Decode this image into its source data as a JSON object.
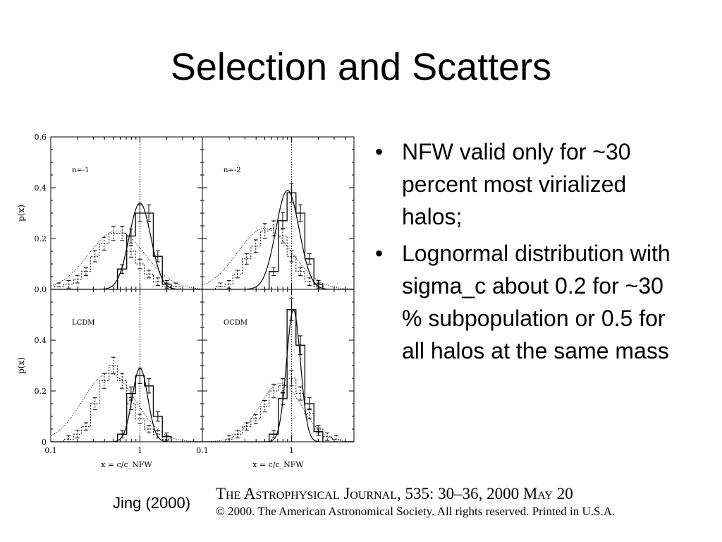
{
  "slide": {
    "title": "Selection and Scatters"
  },
  "bullets": [
    "NFW valid only for ~30 percent most virialized halos;",
    "Lognormal distribution with sigma_c about 0.2 for ~30 % subpopulation or 0.5 for all halos at the same mass"
  ],
  "bullet_glyph": "•",
  "citation": "Jing (2000)",
  "journal": {
    "line1": "The Astrophysical Journal, 535: 30–36, 2000 May 20",
    "line2": "© 2000. The American Astronomical Society. All rights reserved. Printed in U.S.A."
  },
  "chart_data": {
    "type": "line",
    "xscale": "log",
    "xlim": [
      0.1,
      5
    ],
    "ylim": [
      0,
      0.6
    ],
    "xlabel": "x = c/c_NFW",
    "ylabel": "p(x)",
    "yticks": [
      "0.6",
      "0.4",
      "0.2",
      "0.0"
    ],
    "yticks_bottom": [
      "0.4",
      "0.2",
      "0"
    ],
    "xticks": [
      "0.1",
      "1"
    ],
    "reference_line_x": 1,
    "series_style": {
      "solid": "selected halos (histogram + lognormal fit)",
      "dotted": "all halos (histogram + lognormal fit)"
    },
    "panels": [
      {
        "label": "n=-1",
        "solid_hist": {
          "edges": [
            0.45,
            0.56,
            0.71,
            0.89,
            1.12,
            1.41,
            1.78,
            2.24
          ],
          "values": [
            0.0,
            0.08,
            0.21,
            0.3,
            0.3,
            0.13,
            0.02
          ]
        },
        "dotted_hist": {
          "edges": [
            0.09,
            0.11,
            0.14,
            0.18,
            0.22,
            0.28,
            0.35,
            0.45,
            0.56,
            0.71,
            0.89,
            1.12,
            1.41,
            1.78,
            2.24,
            2.82,
            3.55
          ],
          "values": [
            0.0,
            0.01,
            0.02,
            0.04,
            0.07,
            0.13,
            0.18,
            0.22,
            0.22,
            0.15,
            0.1,
            0.06,
            0.03,
            0.01,
            0.01,
            0.0
          ]
        },
        "solid_fit": {
          "peak": 0.34,
          "center": 1.0,
          "sigma_ln": 0.28
        },
        "dotted_fit": {
          "peak": 0.23,
          "center": 0.55,
          "sigma_ln": 0.72
        }
      },
      {
        "label": "n=-2",
        "solid_hist": {
          "edges": [
            0.45,
            0.56,
            0.71,
            0.89,
            1.12,
            1.41,
            1.78,
            2.24
          ],
          "values": [
            0.0,
            0.07,
            0.27,
            0.38,
            0.3,
            0.12,
            0.02
          ]
        },
        "dotted_hist": {
          "edges": [
            0.14,
            0.18,
            0.22,
            0.28,
            0.35,
            0.45,
            0.56,
            0.71,
            0.89,
            1.12,
            1.41,
            1.78,
            2.24,
            2.82
          ],
          "values": [
            0.01,
            0.02,
            0.06,
            0.12,
            0.17,
            0.23,
            0.24,
            0.21,
            0.13,
            0.07,
            0.03,
            0.01,
            0.0
          ]
        },
        "solid_fit": {
          "peak": 0.39,
          "center": 0.9,
          "sigma_ln": 0.3
        },
        "dotted_fit": {
          "peak": 0.24,
          "center": 0.5,
          "sigma_ln": 0.7
        }
      },
      {
        "label": "LCDM",
        "solid_hist": {
          "edges": [
            0.56,
            0.71,
            0.89,
            1.12,
            1.41,
            1.78,
            2.24
          ],
          "values": [
            0.03,
            0.19,
            0.26,
            0.22,
            0.1,
            0.02
          ]
        },
        "dotted_hist": {
          "edges": [
            0.14,
            0.18,
            0.22,
            0.28,
            0.35,
            0.45,
            0.56,
            0.71,
            0.89,
            1.12,
            1.41,
            1.78,
            2.24
          ],
          "values": [
            0.01,
            0.03,
            0.06,
            0.15,
            0.24,
            0.3,
            0.24,
            0.15,
            0.09,
            0.05,
            0.03,
            0.01
          ]
        },
        "solid_fit": {
          "peak": 0.29,
          "center": 1.0,
          "sigma_ln": 0.2
        },
        "dotted_fit": {
          "peak": 0.27,
          "center": 0.45,
          "sigma_ln": 0.68
        }
      },
      {
        "label": "OCDM",
        "solid_hist": {
          "edges": [
            0.56,
            0.71,
            0.89,
            1.12,
            1.41,
            1.78,
            2.24
          ],
          "values": [
            0.03,
            0.17,
            0.52,
            0.38,
            0.15,
            0.04
          ]
        },
        "dotted_hist": {
          "edges": [
            0.18,
            0.22,
            0.28,
            0.35,
            0.45,
            0.56,
            0.71,
            0.89,
            1.12,
            1.41,
            1.78,
            2.24,
            2.82,
            3.55
          ],
          "values": [
            0.01,
            0.03,
            0.06,
            0.09,
            0.14,
            0.2,
            0.22,
            0.25,
            0.19,
            0.11,
            0.05,
            0.02,
            0.01
          ]
        },
        "solid_fit": {
          "peak": 0.52,
          "center": 1.05,
          "sigma_ln": 0.18
        },
        "dotted_fit": {
          "peak": 0.23,
          "center": 0.75,
          "sigma_ln": 0.55
        }
      }
    ]
  }
}
